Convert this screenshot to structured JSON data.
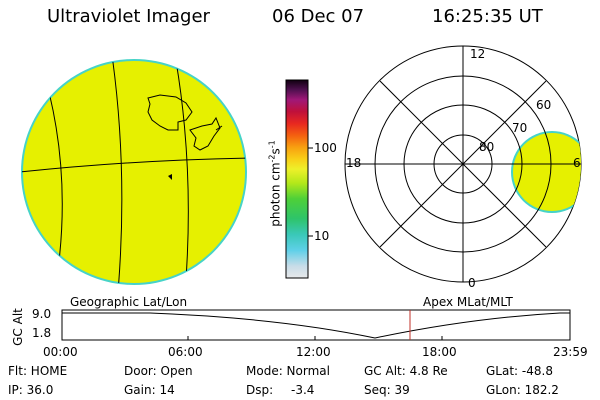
{
  "header": {
    "title": "Ultraviolet Imager",
    "date": "06 Dec 07",
    "time": "16:25:35 UT"
  },
  "colorbar": {
    "label": "photon cm",
    "label_sup1": "-2",
    "label_s": "s",
    "label_sup2": "-1",
    "ticks": [
      "100",
      "10"
    ]
  },
  "polar": {
    "lat_labels": [
      "80",
      "70",
      "60"
    ],
    "mlt_labels": [
      "12",
      "18",
      "6",
      "0"
    ]
  },
  "altitude_panel": {
    "left_title": "Geographic Lat/Lon",
    "right_title": "Apex MLat/MLT",
    "axis_label": "GC Alt",
    "y_ticks": [
      "9.0",
      "1.8"
    ],
    "x_ticks": [
      "00:00",
      "06:00",
      "12:00",
      "18:00",
      "23:59"
    ]
  },
  "status": {
    "filter": "Flt: HOME",
    "ip": "IP: 36.0",
    "door": "Door: Open",
    "gain": "Gain: 14",
    "mode": "Mode: Normal",
    "dsp": "Dsp:",
    "dsp_value": "-3.4",
    "gc_alt": "GC Alt: 4.8 Re",
    "seq": "Seq: 39",
    "glat": "GLat: -48.8",
    "glon": "GLon: 182.2"
  },
  "colors": {
    "field": "#e6f000",
    "rim": "#46d3c8",
    "marker_line": "#c0302a"
  }
}
